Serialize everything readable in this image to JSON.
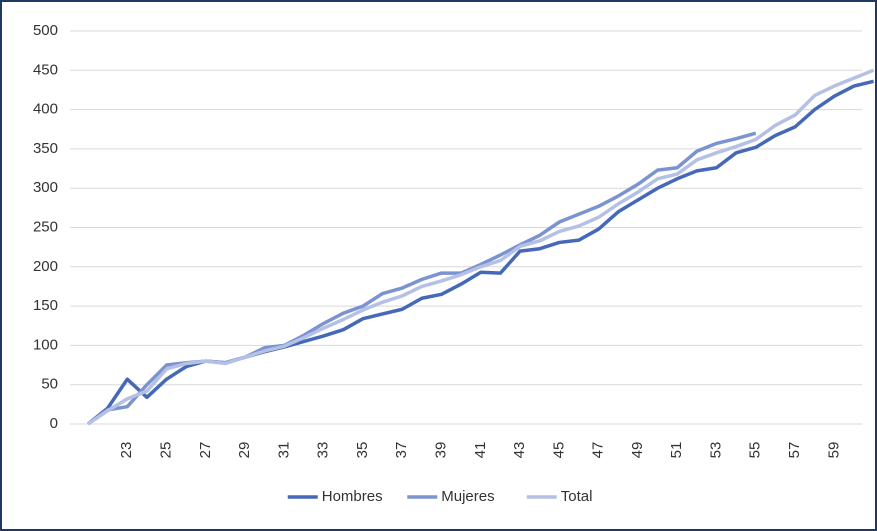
{
  "chart_data": {
    "type": "line",
    "categories": [
      null,
      null,
      "23",
      null,
      "25",
      null,
      "27",
      null,
      "29",
      null,
      "31",
      null,
      "33",
      null,
      "35",
      null,
      "37",
      null,
      "39",
      null,
      "41",
      null,
      "43",
      null,
      "45",
      null,
      "47",
      null,
      "49",
      null,
      "51",
      null,
      "53",
      null,
      "55",
      null,
      "57",
      null,
      "59",
      null,
      null
    ],
    "series": [
      {
        "name": "Hombres",
        "color": "#4569b8",
        "values": [
          0,
          20,
          57,
          34,
          57,
          73,
          80,
          78,
          85,
          92,
          98,
          105,
          112,
          120,
          134,
          140,
          146,
          160,
          165,
          178,
          193,
          192,
          220,
          223,
          231,
          234,
          248,
          270,
          285,
          300,
          312,
          322,
          326,
          345,
          352,
          367,
          378,
          400,
          417,
          430,
          436
        ]
      },
      {
        "name": "Mujeres",
        "color": "#7b93d1",
        "values": [
          0,
          18,
          22,
          50,
          75,
          78,
          80,
          78,
          85,
          97,
          100,
          113,
          128,
          141,
          150,
          166,
          173,
          184,
          192,
          192,
          203,
          215,
          228,
          240,
          257,
          267,
          277,
          290,
          305,
          323,
          326,
          347,
          357,
          363,
          370,
          null,
          null,
          null,
          null,
          null,
          null
        ]
      },
      {
        "name": "Total",
        "color": "#b4c0e4",
        "values": [
          0,
          17,
          32,
          42,
          70,
          77,
          80,
          77,
          85,
          93,
          99,
          110,
          122,
          133,
          145,
          155,
          163,
          175,
          182,
          190,
          200,
          208,
          226,
          233,
          245,
          252,
          263,
          280,
          295,
          312,
          318,
          336,
          345,
          353,
          362,
          380,
          393,
          418,
          430,
          440,
          450
        ]
      }
    ],
    "ylim": [
      0,
      500
    ],
    "yticks": [
      0,
      50,
      100,
      150,
      200,
      250,
      300,
      350,
      400,
      450,
      500
    ],
    "grid": true,
    "legend": "bottom"
  }
}
